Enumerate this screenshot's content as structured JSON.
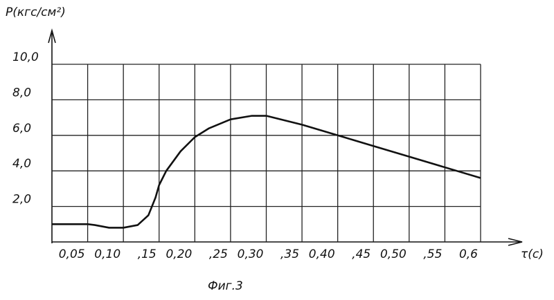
{
  "chart_data": {
    "type": "line",
    "y_label": "Р(кгс/см²)",
    "x_label": "τ(с)",
    "caption": "Фиг.3",
    "x": [
      0,
      0.05,
      0.06,
      0.08,
      0.1,
      0.12,
      0.135,
      0.145,
      0.15,
      0.16,
      0.18,
      0.2,
      0.22,
      0.25,
      0.28,
      0.3,
      0.35,
      0.4,
      0.45,
      0.5,
      0.55,
      0.6
    ],
    "series": [
      {
        "color": "#111111",
        "values": [
          1.0,
          1.0,
          0.95,
          0.8,
          0.8,
          0.95,
          1.5,
          2.5,
          3.2,
          4.0,
          5.1,
          5.9,
          6.4,
          6.9,
          7.1,
          7.1,
          6.6,
          6.0,
          5.4,
          4.8,
          4.2,
          3.6
        ]
      }
    ],
    "xlim": [
      0,
      0.6
    ],
    "ylim": [
      0,
      10
    ],
    "xticks": [
      {
        "value": 0.05,
        "label": "0,05"
      },
      {
        "value": 0.1,
        "label": "0,10"
      },
      {
        "value": 0.15,
        "label": ",15"
      },
      {
        "value": 0.2,
        "label": "0,20"
      },
      {
        "value": 0.25,
        "label": ",25"
      },
      {
        "value": 0.3,
        "label": "0,30"
      },
      {
        "value": 0.35,
        "label": ",35"
      },
      {
        "value": 0.4,
        "label": "0,40"
      },
      {
        "value": 0.45,
        "label": ",45"
      },
      {
        "value": 0.5,
        "label": "0,50"
      },
      {
        "value": 0.55,
        "label": ",55"
      },
      {
        "value": 0.6,
        "label": "0,6"
      }
    ],
    "yticks": [
      {
        "value": 2,
        "label": "2,0"
      },
      {
        "value": 4,
        "label": "4,0"
      },
      {
        "value": 6,
        "label": "6,0"
      },
      {
        "value": 8,
        "label": "8,0"
      },
      {
        "value": 10,
        "label": "10,0"
      }
    ],
    "grid": true
  }
}
